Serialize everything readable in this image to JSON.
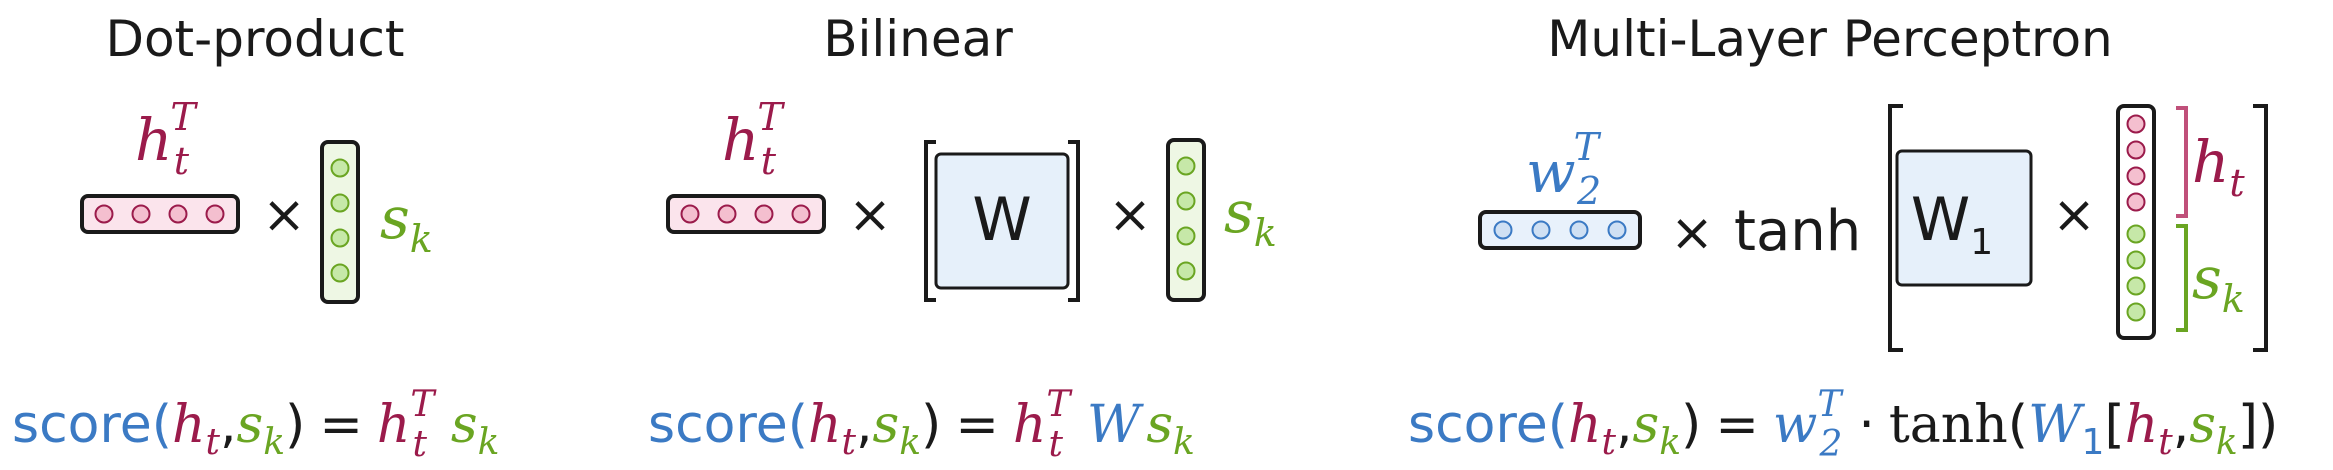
{
  "colors": {
    "h": "#9b1b4b",
    "s": "#6aa522",
    "w": "#3b7ac4",
    "dark": "#1a1a1a",
    "h_fill": "#f4bfcf",
    "s_fill": "#c6e8a8",
    "w_fill": "#cfe0f3",
    "matrix_fill": "#e6f0fa"
  },
  "panels": [
    {
      "title": "Dot-product",
      "h_label": "h",
      "h_sub": "t",
      "h_sup": "T",
      "times": "×",
      "s_label": "s",
      "s_sub": "k",
      "formula": {
        "score": "score",
        "open": "(",
        "h": "h",
        "h_sub": "t",
        "comma": ",",
        "s": "s",
        "s_sub": "k",
        "close": ")",
        "eq": "=",
        "rhs_h": "h",
        "rhs_h_sub": "t",
        "rhs_h_sup": "T",
        "rhs_s": "s",
        "rhs_s_sub": "k"
      }
    },
    {
      "title": "Bilinear",
      "h_label": "h",
      "h_sub": "t",
      "h_sup": "T",
      "times1": "×",
      "matrix": "W",
      "times2": "×",
      "s_label": "s",
      "s_sub": "k",
      "formula": {
        "score": "score",
        "open": "(",
        "h": "h",
        "h_sub": "t",
        "comma": ",",
        "s": "s",
        "s_sub": "k",
        "close": ")",
        "eq": "=",
        "rhs_h": "h",
        "rhs_h_sub": "t",
        "rhs_h_sup": "T",
        "rhs_w": "W",
        "rhs_s": "s",
        "rhs_s_sub": "k"
      }
    },
    {
      "title": "Multi-Layer Perceptron",
      "w_label": "w",
      "w_sub": "2",
      "w_sup": "T",
      "times1": "×",
      "tanh": "tanh",
      "matrix": "W",
      "matrix_sub": "1",
      "times2": "×",
      "h_label": "h",
      "h_sub": "t",
      "s_label": "s",
      "s_sub": "k",
      "formula": {
        "score": "score",
        "open": "(",
        "h": "h",
        "h_sub": "t",
        "comma": ",",
        "s": "s",
        "s_sub": "k",
        "close": ")",
        "eq": "=",
        "rhs_w": "w",
        "rhs_w_sub": "2",
        "rhs_w_sup": "T",
        "dot": "·",
        "tanh": "tanh",
        "t_open": "(",
        "rhs_W": "W",
        "rhs_W_sub": "1",
        "b_open": "[",
        "rhs_h": "h",
        "rhs_h_sub": "t",
        "rhs_comma": ",",
        "rhs_s": "s",
        "rhs_s_sub": "k",
        "b_close": "]",
        "t_close": ")"
      }
    }
  ]
}
